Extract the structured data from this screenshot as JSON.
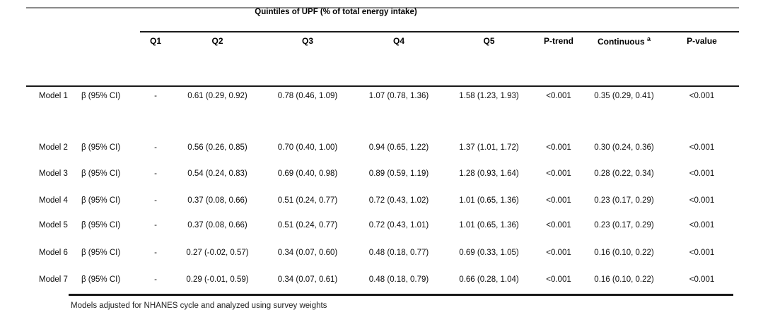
{
  "title": "Quintiles of UPF (% of total energy intake)",
  "columns": {
    "q1": "Q1",
    "q2": "Q2",
    "q3": "Q3",
    "q4": "Q4",
    "q5": "Q5",
    "p_trend": "P-trend",
    "continuous": "Continuous",
    "continuous_sup": "a",
    "p_value": "P-value"
  },
  "table": {
    "rows": [
      {
        "model": "Model 1",
        "measure": "β (95% CI)",
        "q1": "-",
        "q2": "0.61 (0.29, 0.92)",
        "q3": "0.78 (0.46, 1.09)",
        "q4": "1.07 (0.78, 1.36)",
        "q5": "1.58 (1.23, 1.93)",
        "p_trend": "<0.001",
        "continuous": "0.35 (0.29, 0.41)",
        "p_value": "<0.001"
      },
      {
        "model": "Model 2",
        "measure": "β (95% CI)",
        "q1": "-",
        "q2": "0.56 (0.26, 0.85)",
        "q3": "0.70 (0.40, 1.00)",
        "q4": "0.94 (0.65, 1.22)",
        "q5": "1.37 (1.01, 1.72)",
        "p_trend": "<0.001",
        "continuous": "0.30 (0.24, 0.36)",
        "p_value": "<0.001"
      },
      {
        "model": "Model 3",
        "measure": "β (95% CI)",
        "q1": "-",
        "q2": "0.54 (0.24, 0.83)",
        "q3": "0.69 (0.40, 0.98)",
        "q4": "0.89 (0.59, 1.19)",
        "q5": "1.28 (0.93, 1.64)",
        "p_trend": "<0.001",
        "continuous": "0.28 (0.22, 0.34)",
        "p_value": "<0.001"
      },
      {
        "model": "Model 4",
        "measure": "β (95% CI)",
        "q1": "-",
        "q2": "0.37 (0.08, 0.66)",
        "q3": "0.51 (0.24, 0.77)",
        "q4": "0.72 (0.43, 1.02)",
        "q5": "1.01 (0.65, 1.36)",
        "p_trend": "<0.001",
        "continuous": "0.23 (0.17, 0.29)",
        "p_value": "<0.001"
      },
      {
        "model": "Model 5",
        "measure": "β (95% CI)",
        "q1": "-",
        "q2": "0.37 (0.08, 0.66)",
        "q3": "0.51 (0.24, 0.77)",
        "q4": "0.72 (0.43, 1.01)",
        "q5": "1.01 (0.65, 1.36)",
        "p_trend": "<0.001",
        "continuous": "0.23 (0.17, 0.29)",
        "p_value": "<0.001"
      },
      {
        "model": "Model 6",
        "measure": "β (95% CI)",
        "q1": "-",
        "q2": "0.27 (-0.02, 0.57)",
        "q3": "0.34 (0.07, 0.60)",
        "q4": "0.48 (0.18, 0.77)",
        "q5": "0.69 (0.33, 1.05)",
        "p_trend": "<0.001",
        "continuous": "0.16 (0.10, 0.22)",
        "p_value": "<0.001"
      },
      {
        "model": "Model 7",
        "measure": "β (95% CI)",
        "q1": "-",
        "q2": "0.29 (-0.01, 0.59)",
        "q3": "0.34 (0.07, 0.61)",
        "q4": "0.48 (0.18, 0.79)",
        "q5": "0.66 (0.28, 1.04)",
        "p_trend": "<0.001",
        "continuous": "0.16 (0.10, 0.22)",
        "p_value": "<0.001"
      }
    ]
  },
  "footnote": "Models adjusted for NHANES cycle and analyzed using survey weights"
}
